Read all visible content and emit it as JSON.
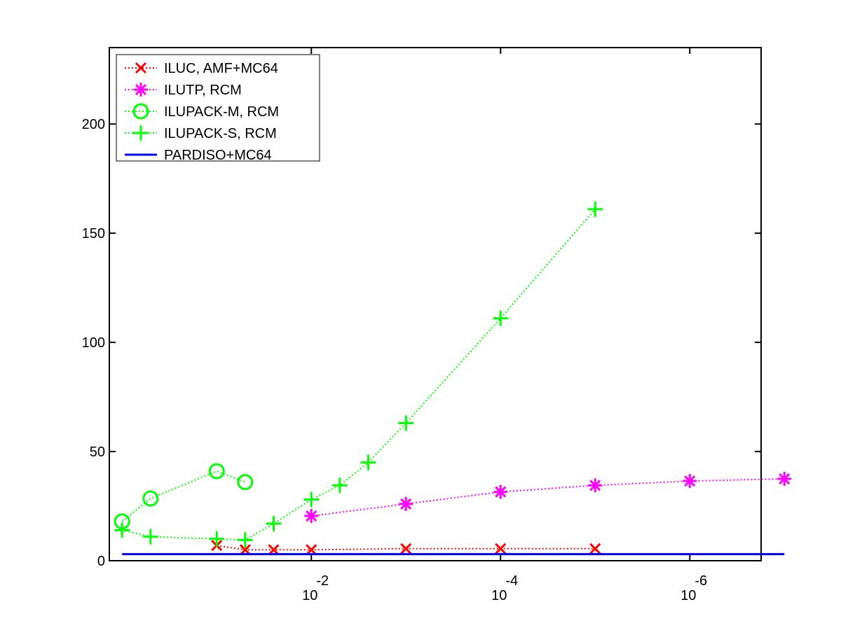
{
  "chart_data": {
    "type": "line",
    "title": "",
    "xlabel": "",
    "ylabel": "",
    "x_scale": "log-reversed",
    "xlim": [
      1,
      1e-07
    ],
    "ylim": [
      0,
      235
    ],
    "grid": false,
    "legend_position": "top-left",
    "y_ticks": [
      0,
      50,
      100,
      150,
      200
    ],
    "x_ticks": [
      {
        "value": 0.01,
        "base": "10",
        "exp": "-2"
      },
      {
        "value": 0.0001,
        "base": "10",
        "exp": "-4"
      },
      {
        "value": 1e-06,
        "base": "10",
        "exp": "-6"
      }
    ],
    "series": [
      {
        "name": "ILUC, AMF+MC64",
        "color": "#ff0000",
        "marker": "x",
        "line_style": "dotted",
        "points": [
          [
            0.1,
            7
          ],
          [
            0.05,
            5
          ],
          [
            0.025,
            5
          ],
          [
            0.01,
            5
          ],
          [
            0.001,
            5.5
          ],
          [
            0.0001,
            5.5
          ],
          [
            1e-05,
            5.5
          ]
        ]
      },
      {
        "name": "ILUTP, RCM",
        "color": "#ff00ff",
        "marker": "asterisk",
        "line_style": "dotted",
        "points": [
          [
            0.01,
            20.5
          ],
          [
            0.001,
            26
          ],
          [
            0.0001,
            31.5
          ],
          [
            1e-05,
            34.5
          ],
          [
            1e-06,
            36.5
          ],
          [
            1e-07,
            37.5
          ]
        ]
      },
      {
        "name": "ILUPACK-M, RCM",
        "color": "#00ff00",
        "marker": "circle",
        "line_style": "dotted",
        "points": [
          [
            1,
            18
          ],
          [
            0.5,
            28.5
          ],
          [
            0.1,
            41
          ],
          [
            0.05,
            36
          ]
        ]
      },
      {
        "name": "ILUPACK-S, RCM",
        "color": "#00ff00",
        "marker": "plus",
        "line_style": "dotted",
        "points": [
          [
            1,
            14
          ],
          [
            0.5,
            11
          ],
          [
            0.1,
            10
          ],
          [
            0.05,
            9.5
          ],
          [
            0.025,
            17
          ],
          [
            0.01,
            28
          ],
          [
            0.005,
            34.5
          ],
          [
            0.0025,
            45
          ],
          [
            0.001,
            63
          ],
          [
            0.0001,
            111
          ],
          [
            1e-05,
            161
          ]
        ]
      },
      {
        "name": "PARDISO+MC64",
        "color": "#0000ff",
        "marker": "none",
        "line_style": "solid",
        "points": [
          [
            1,
            3
          ],
          [
            1e-07,
            3
          ]
        ]
      }
    ]
  }
}
